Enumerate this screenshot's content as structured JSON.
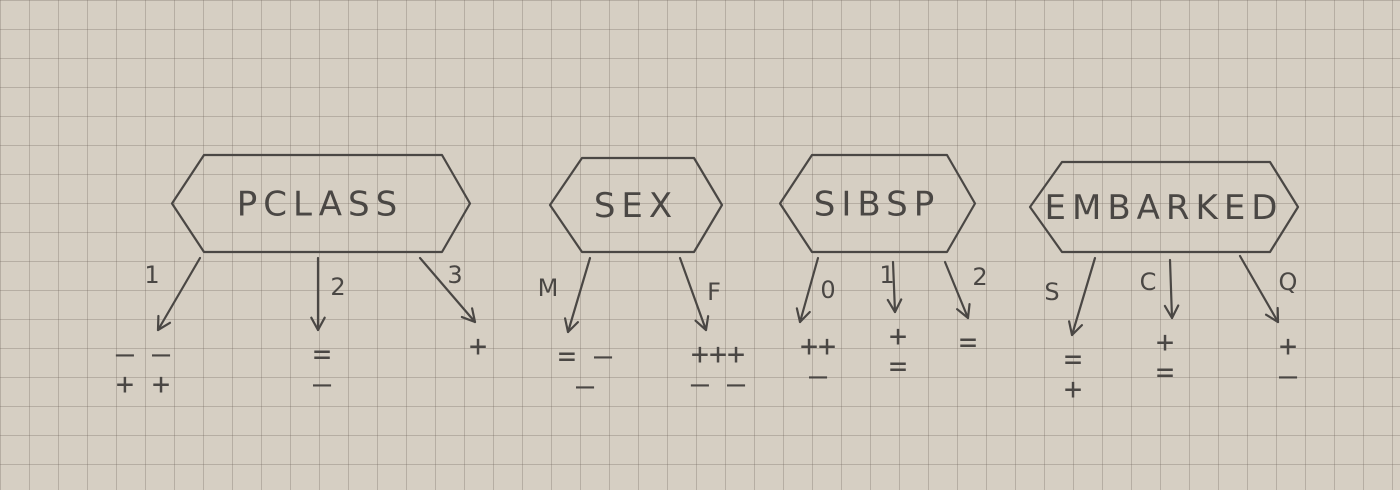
{
  "nodes": [
    {
      "id": "pclass",
      "label": "PCLASS",
      "branches": [
        {
          "label": "1",
          "outcomes": [
            "— —",
            "+ +"
          ]
        },
        {
          "label": "2",
          "outcomes": [
            "=",
            "—"
          ]
        },
        {
          "label": "3",
          "outcomes": [
            "+"
          ]
        }
      ]
    },
    {
      "id": "sex",
      "label": "SEX",
      "branches": [
        {
          "label": "M",
          "outcomes": [
            "= –",
            "—"
          ]
        },
        {
          "label": "F",
          "outcomes": [
            "+++",
            "— —"
          ]
        }
      ]
    },
    {
      "id": "sibsp",
      "label": "SIBSP",
      "branches": [
        {
          "label": "0",
          "outcomes": [
            "++",
            "—"
          ]
        },
        {
          "label": "1",
          "outcomes": [
            "+",
            "="
          ]
        },
        {
          "label": "2",
          "outcomes": [
            "="
          ]
        }
      ]
    },
    {
      "id": "embarked",
      "label": "EMBARKED",
      "branches": [
        {
          "label": "S",
          "outcomes": [
            "=",
            "+"
          ]
        },
        {
          "label": "C",
          "outcomes": [
            "+",
            "="
          ]
        },
        {
          "label": "Q",
          "outcomes": [
            "+",
            "—"
          ]
        }
      ]
    }
  ]
}
